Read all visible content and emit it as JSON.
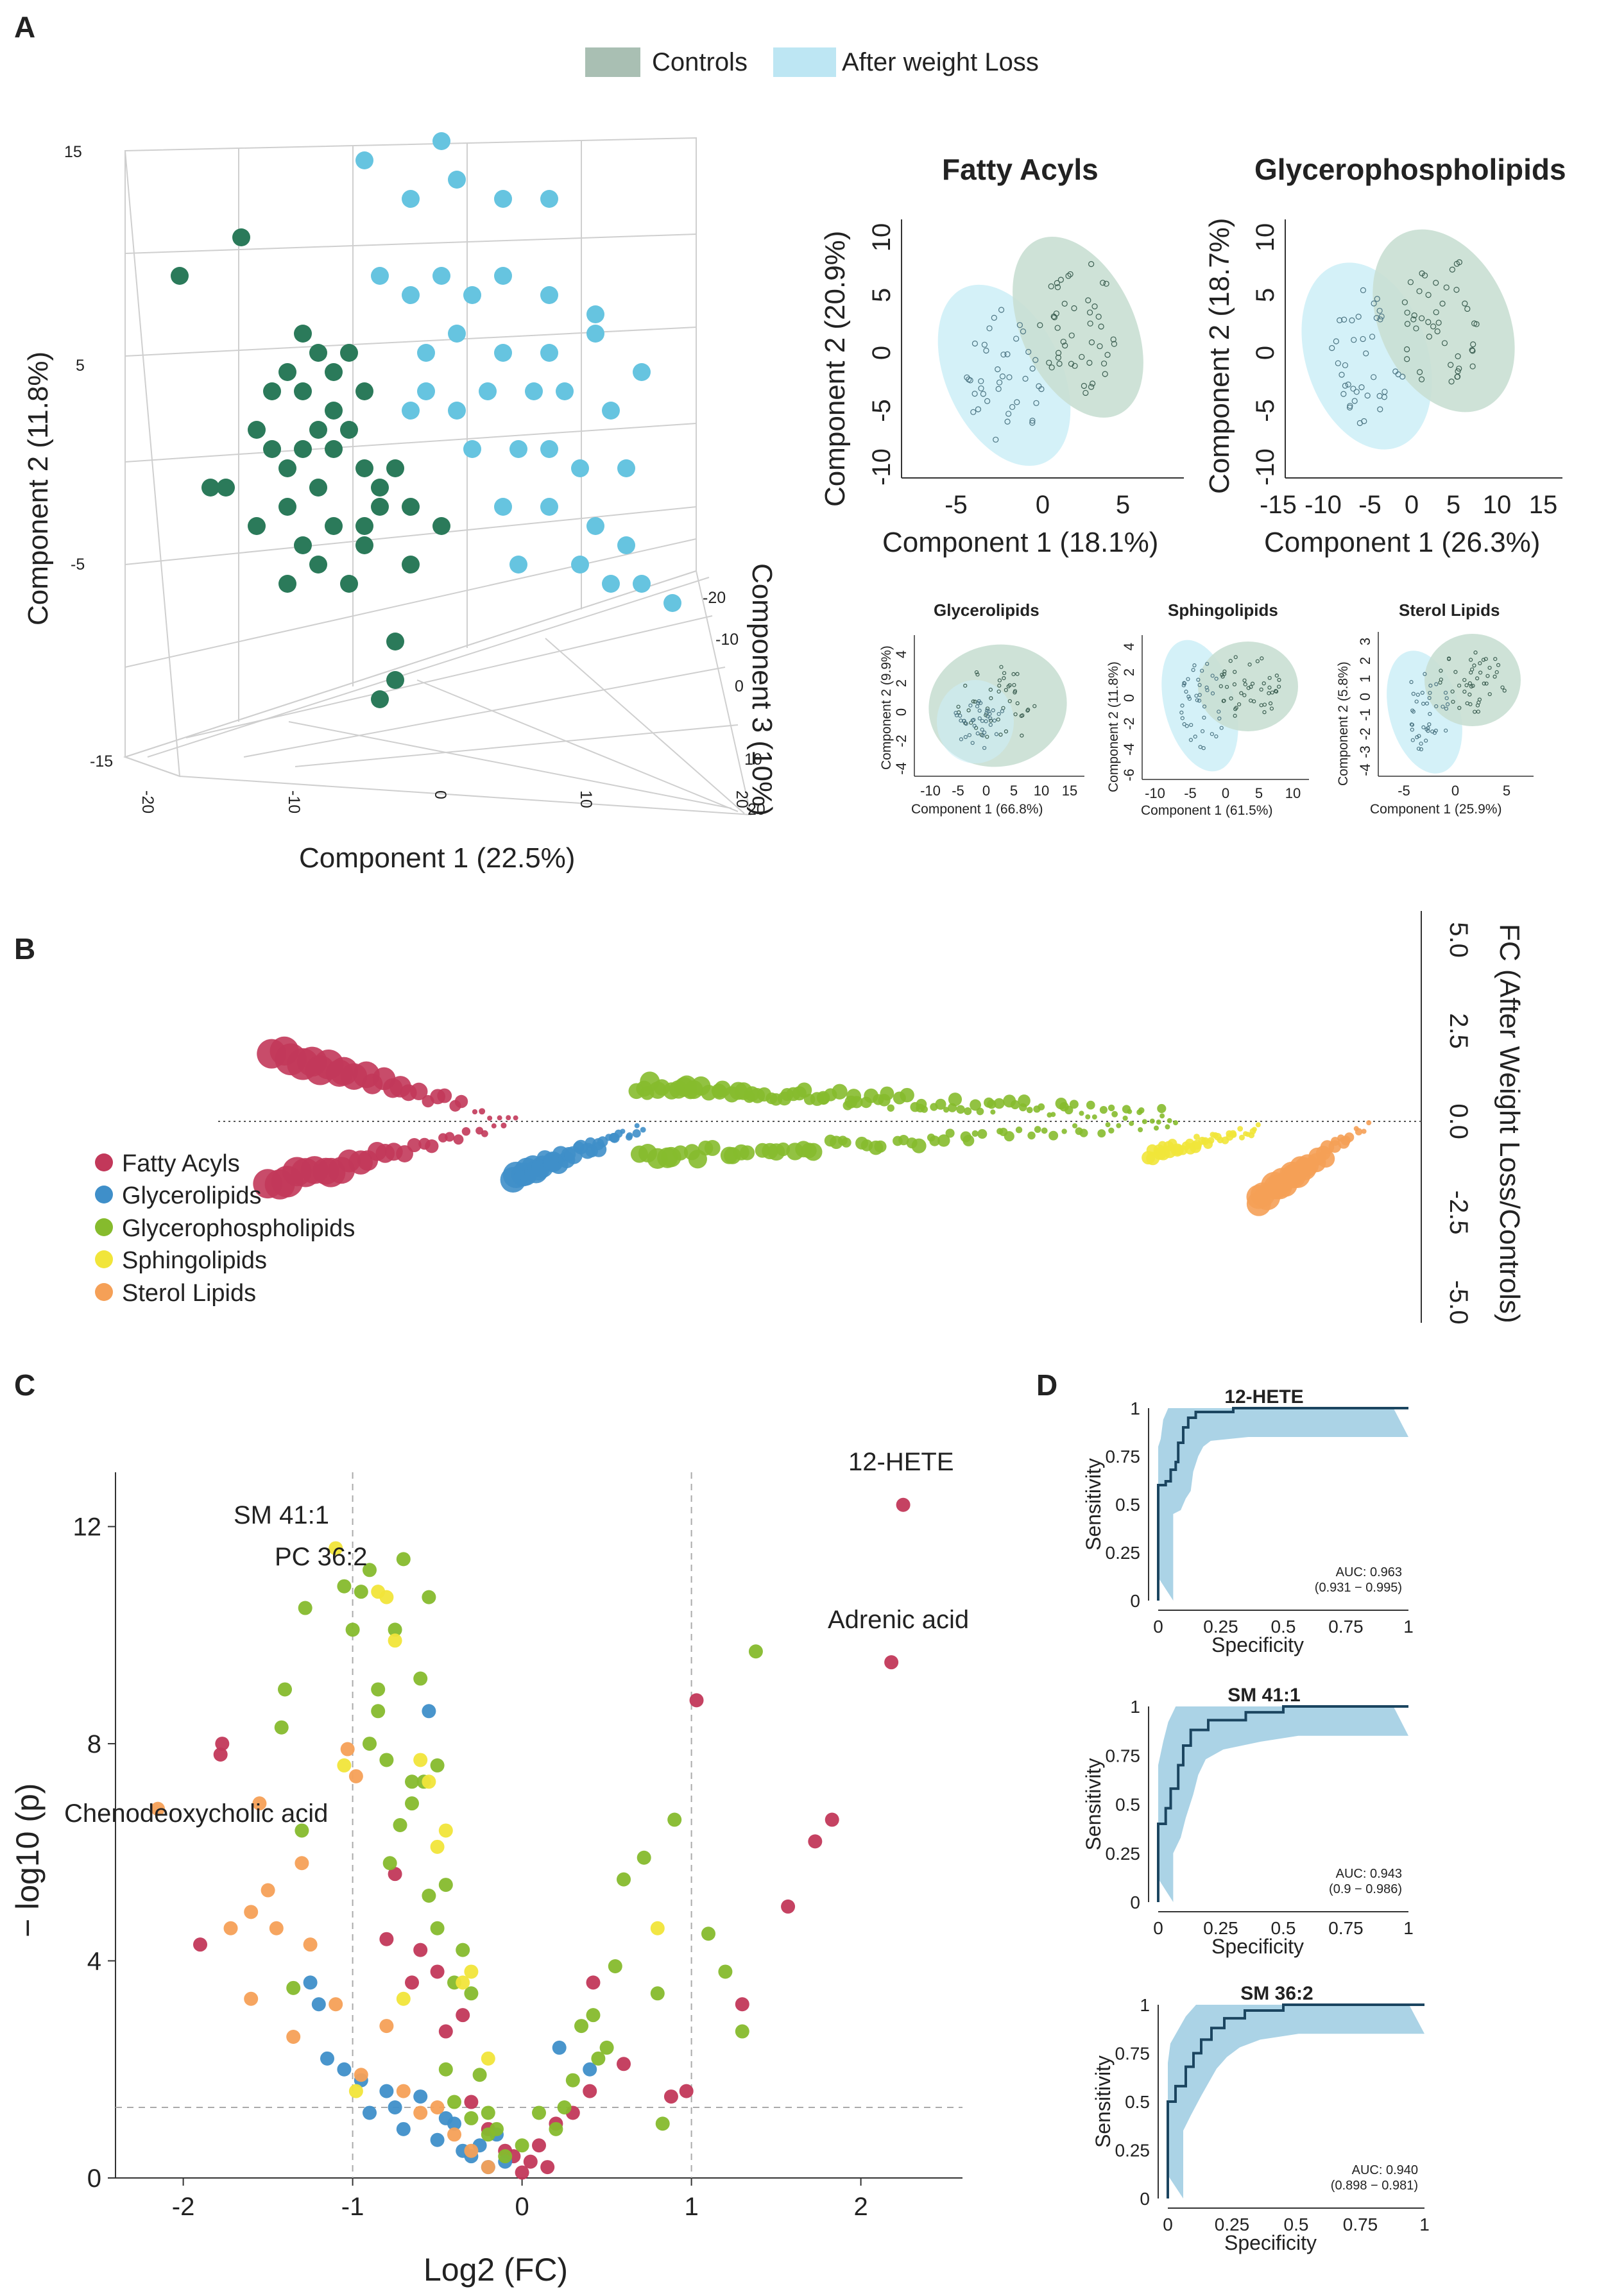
{
  "panels": {
    "a": "A",
    "b": "B",
    "c": "C",
    "d": "D"
  },
  "colors": {
    "control": "#2b7a5a",
    "control_fill": "#c9dfd3",
    "weightloss": "#66c4e0",
    "weightloss_fill": "#cdeef7",
    "fatty_acyls": "#c2385a",
    "glycerolipids": "#3f8fc9",
    "glycerophospholipids": "#86bb2d",
    "sphingolipids": "#f1e53a",
    "sterol_lipids": "#f5a057",
    "roc": "#1b4560",
    "roc_band": "#9ccbe2"
  },
  "legend_a": {
    "controls": "Controls",
    "after": "After weight Loss"
  },
  "pca3d": {
    "xlabel": "Component 1 (22.5%)",
    "ylabel": "Component 2 (11.8%)",
    "zlabel": "Component 3 (10%)",
    "yticks": [
      "15",
      "5",
      "-5",
      "-15"
    ],
    "xticks": [
      "-20",
      "-10",
      "0",
      "10",
      "20"
    ],
    "zticks": [
      "-20",
      "-10",
      "0",
      "10",
      "20"
    ],
    "controls": [
      [
        -15,
        7
      ],
      [
        -11,
        9
      ],
      [
        -7,
        4
      ],
      [
        -6,
        3
      ],
      [
        -7,
        1
      ],
      [
        -8,
        2
      ],
      [
        -5,
        2
      ],
      [
        -4,
        3
      ],
      [
        -9,
        -2
      ],
      [
        -10,
        -1
      ],
      [
        -7,
        -2
      ],
      [
        -5,
        -2
      ],
      [
        -6,
        -4
      ],
      [
        -3,
        -3
      ],
      [
        -2,
        -4
      ],
      [
        -2,
        -5
      ],
      [
        -4,
        -1
      ],
      [
        -13,
        -4
      ],
      [
        -12,
        -4
      ],
      [
        -10,
        -6
      ],
      [
        -8,
        -5
      ],
      [
        -7,
        -7
      ],
      [
        -6,
        -8
      ],
      [
        -5,
        -6
      ],
      [
        -3,
        -6
      ],
      [
        -8,
        -9
      ],
      [
        -4,
        -9
      ],
      [
        -3,
        -7
      ],
      [
        0,
        -5
      ],
      [
        2,
        -6
      ],
      [
        0,
        -8
      ],
      [
        -1,
        -12
      ],
      [
        -1,
        -14
      ],
      [
        -2,
        -15
      ],
      [
        -1,
        -3
      ],
      [
        -6,
        -1
      ],
      [
        -9,
        1
      ],
      [
        -5,
        0
      ],
      [
        -3,
        1
      ],
      [
        -8,
        -3
      ]
    ],
    "after": [
      [
        -3,
        13
      ],
      [
        2,
        14
      ],
      [
        3,
        12
      ],
      [
        0,
        11
      ],
      [
        6,
        11
      ],
      [
        9,
        11
      ],
      [
        -2,
        7
      ],
      [
        0,
        6
      ],
      [
        2,
        7
      ],
      [
        4,
        6
      ],
      [
        6,
        7
      ],
      [
        9,
        6
      ],
      [
        12,
        5
      ],
      [
        1,
        3
      ],
      [
        3,
        4
      ],
      [
        6,
        3
      ],
      [
        9,
        3
      ],
      [
        12,
        4
      ],
      [
        15,
        2
      ],
      [
        1,
        1
      ],
      [
        3,
        0
      ],
      [
        5,
        1
      ],
      [
        8,
        1
      ],
      [
        10,
        1
      ],
      [
        13,
        0
      ],
      [
        4,
        -2
      ],
      [
        7,
        -2
      ],
      [
        9,
        -2
      ],
      [
        11,
        -3
      ],
      [
        14,
        -3
      ],
      [
        6,
        -5
      ],
      [
        9,
        -5
      ],
      [
        12,
        -6
      ],
      [
        14,
        -7
      ],
      [
        11,
        -8
      ],
      [
        13,
        -9
      ],
      [
        15,
        -9
      ],
      [
        17,
        -10
      ],
      [
        7,
        -8
      ],
      [
        0,
        0
      ]
    ]
  },
  "small_pca": [
    {
      "title": "Fatty Acyls",
      "xlabel": "Component 1 (18.1%)",
      "ylabel": "Component 2 (20.9%)",
      "xticks": [
        "-5",
        "0",
        "5"
      ],
      "yticks": [
        "10",
        "5",
        "0",
        "-5",
        "-10"
      ]
    },
    {
      "title": "Glycerophospholipids",
      "xlabel": "Component 1 (26.3%)",
      "ylabel": "Component 2 (18.7%)",
      "xticks": [
        "-15",
        "-10",
        "-5",
        "0",
        "5",
        "10",
        "15"
      ],
      "yticks": [
        "10",
        "5",
        "0",
        "-5",
        "-10"
      ]
    },
    {
      "title": "Glycerolipids",
      "xlabel": "Component 1 (66.8%)",
      "ylabel": "Component 2 (9.9%)",
      "xticks": [
        "-10",
        "-5",
        "0",
        "5",
        "10",
        "15"
      ],
      "yticks": [
        "4",
        "2",
        "0",
        "-2",
        "-4"
      ]
    },
    {
      "title": "Sphingolipids",
      "xlabel": "Component 1 (61.5%)",
      "ylabel": "Component 2 (11.8%)",
      "xticks": [
        "-10",
        "-5",
        "0",
        "5",
        "10"
      ],
      "yticks": [
        "4",
        "2",
        "0",
        "-2",
        "-4",
        "-6"
      ]
    },
    {
      "title": "Sterol Lipids",
      "xlabel": "Component 1 (25.9%)",
      "ylabel": "Component 2 (5.8%)",
      "xticks": [
        "-5",
        "0",
        "5"
      ],
      "yticks": [
        "3",
        "2",
        "1",
        "0",
        "-1",
        "-2",
        "-3",
        "-4"
      ]
    }
  ],
  "panel_b": {
    "ylabel": "FC (After Weight Loss/Controls)",
    "yticks": [
      "5.0",
      "2.5",
      "0.0",
      "-2.5",
      "-5.0"
    ],
    "legend": [
      "Fatty Acyls",
      "Glycerolipids",
      "Glycerophospholipids",
      "Sphingolipids",
      "Sterol Lipids"
    ]
  },
  "chart_data": {
    "type": "scatter",
    "title": "",
    "xlabel": "Log2 (FC)",
    "ylabel": "− log10 (p)",
    "xlim": [
      -2.4,
      2.6
    ],
    "ylim": [
      0,
      13
    ],
    "xticks": [
      "-2",
      "-1",
      "0",
      "1",
      "2"
    ],
    "yticks": [
      "0",
      "4",
      "8",
      "12"
    ],
    "threshold_x": [
      -1,
      1
    ],
    "threshold_y": 1.3,
    "annotations": [
      "12-HETE",
      "Adrenic acid",
      "SM 41:1",
      "PC 36:2",
      "Chenodeoxycholic acid"
    ],
    "series": [
      {
        "name": "Fatty Acyls",
        "x": [
          2.25,
          2.18,
          1.83,
          1.73,
          1.57,
          1.3,
          1.03,
          0.97,
          0.88,
          0.6,
          0.42,
          0.4,
          0.3,
          0.2,
          0.1,
          0.05,
          0.0,
          -0.1,
          -0.2,
          -0.3,
          -0.35,
          -0.45,
          -0.5,
          -0.6,
          -0.65,
          -0.75,
          -0.8,
          -1.77,
          -1.78,
          -1.9,
          0.15,
          -0.05
        ],
        "y": [
          12.4,
          9.5,
          6.6,
          6.2,
          5.0,
          3.2,
          8.8,
          1.6,
          1.5,
          2.1,
          3.6,
          1.6,
          1.2,
          1.0,
          0.6,
          0.3,
          0.1,
          0.5,
          0.9,
          1.4,
          3.0,
          2.7,
          3.8,
          4.2,
          3.6,
          5.6,
          4.4,
          8.0,
          7.8,
          4.3,
          0.2,
          0.4
        ]
      },
      {
        "name": "Glycerolipids",
        "x": [
          -1.25,
          -1.2,
          -1.15,
          -1.05,
          -0.95,
          -0.9,
          -0.8,
          -0.75,
          -0.7,
          -0.6,
          -0.5,
          -0.4,
          -0.3,
          -0.25,
          -0.2,
          -0.15,
          -0.1,
          0.22,
          0.4,
          -0.55,
          -0.45,
          -0.35
        ],
        "y": [
          3.6,
          3.2,
          2.2,
          2.0,
          1.8,
          1.2,
          1.6,
          1.3,
          0.9,
          1.5,
          0.7,
          1.0,
          0.4,
          0.6,
          0.2,
          0.8,
          0.3,
          2.4,
          2.0,
          8.6,
          1.1,
          0.5
        ]
      },
      {
        "name": "Glycerophospholipids",
        "x": [
          -1.4,
          -1.42,
          -1.35,
          -1.3,
          -1.28,
          -1.05,
          -1.0,
          -0.95,
          -0.9,
          -0.85,
          -0.8,
          -0.75,
          -0.7,
          -0.65,
          -0.6,
          -0.55,
          -0.5,
          -0.45,
          -0.4,
          -0.35,
          -0.3,
          -0.25,
          -0.2,
          -0.15,
          -0.1,
          0.0,
          0.1,
          0.2,
          0.3,
          0.35,
          0.42,
          0.5,
          0.55,
          0.6,
          0.72,
          0.8,
          0.83,
          0.9,
          1.1,
          1.2,
          1.3,
          1.38,
          -0.78,
          -0.72,
          -0.65,
          -0.58,
          -0.55,
          -0.5,
          -0.9,
          -0.85,
          -0.45,
          -0.4,
          -0.3,
          -0.2,
          0.25,
          0.45
        ],
        "y": [
          9.0,
          8.3,
          3.5,
          6.4,
          10.5,
          10.9,
          10.1,
          10.8,
          11.2,
          8.6,
          7.7,
          10.1,
          11.4,
          7.3,
          9.2,
          10.7,
          4.6,
          5.4,
          3.6,
          4.2,
          3.4,
          1.9,
          1.2,
          0.9,
          0.4,
          0.6,
          1.2,
          0.9,
          1.8,
          2.8,
          3.0,
          2.4,
          3.9,
          5.5,
          5.9,
          3.4,
          1.0,
          6.6,
          4.5,
          3.8,
          2.7,
          9.7,
          5.8,
          6.5,
          6.9,
          7.3,
          5.2,
          7.6,
          8.0,
          9.0,
          2.0,
          1.4,
          1.1,
          0.8,
          1.3,
          2.2
        ]
      },
      {
        "name": "Sphingolipids",
        "x": [
          -1.1,
          -1.05,
          -0.98,
          -0.85,
          -0.8,
          -0.75,
          -0.7,
          -0.6,
          -0.55,
          -0.5,
          -0.45,
          -0.3,
          -0.2,
          0.8,
          -0.35
        ],
        "y": [
          11.6,
          7.6,
          1.6,
          10.8,
          10.7,
          9.9,
          3.3,
          7.7,
          7.3,
          6.1,
          6.4,
          3.8,
          2.2,
          4.6,
          3.6
        ]
      },
      {
        "name": "Sterol Lipids",
        "x": [
          -2.15,
          -1.55,
          -1.5,
          -1.45,
          -1.6,
          -1.72,
          -1.6,
          -1.3,
          -1.25,
          -1.1,
          -0.95,
          -0.8,
          -0.7,
          -0.6,
          -0.5,
          -0.4,
          -0.3,
          -0.2,
          -1.03,
          -0.98,
          -1.35
        ],
        "y": [
          6.8,
          6.9,
          5.3,
          4.6,
          3.3,
          4.6,
          4.9,
          5.8,
          4.3,
          3.2,
          1.9,
          2.8,
          1.6,
          1.2,
          1.3,
          0.8,
          0.5,
          0.2,
          7.9,
          7.4,
          2.6
        ]
      }
    ]
  },
  "roc": [
    {
      "title": "12-HETE",
      "auc": "AUC: 0.963",
      "ci": "(0.931 − 0.995)",
      "tpr": [
        0,
        0.6,
        0.62,
        0.68,
        0.72,
        0.82,
        0.9,
        0.95,
        0.98,
        1,
        1
      ],
      "fpr": [
        0,
        0,
        0.03,
        0.05,
        0.07,
        0.08,
        0.1,
        0.12,
        0.15,
        0.3,
        1
      ]
    },
    {
      "title": "SM 41:1",
      "auc": "AUC: 0.943",
      "ci": "(0.9 − 0.986)",
      "tpr": [
        0,
        0.4,
        0.48,
        0.58,
        0.7,
        0.8,
        0.88,
        0.93,
        0.97,
        1,
        1
      ],
      "fpr": [
        0,
        0,
        0.03,
        0.05,
        0.08,
        0.1,
        0.13,
        0.2,
        0.35,
        0.5,
        1
      ]
    },
    {
      "title": "SM 36:2",
      "auc": "AUC: 0.940",
      "ci": "(0.898 − 0.981)",
      "tpr": [
        0,
        0.5,
        0.58,
        0.68,
        0.75,
        0.82,
        0.88,
        0.93,
        0.97,
        1,
        1
      ],
      "fpr": [
        0,
        0,
        0.03,
        0.07,
        0.1,
        0.13,
        0.17,
        0.22,
        0.3,
        0.45,
        1
      ]
    }
  ],
  "roc_axes": {
    "xlabel": "Specificity",
    "ylabel": "Sensitivity",
    "xticks": [
      "0",
      "0.25",
      "0.5",
      "0.75",
      "1"
    ],
    "yticks": [
      "0",
      "0.25",
      "0.5",
      "0.75",
      "1"
    ]
  }
}
